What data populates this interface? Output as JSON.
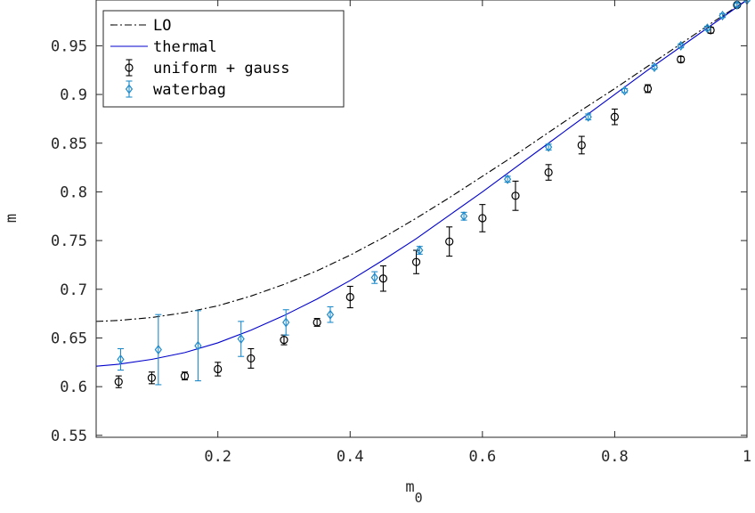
{
  "chart_data": {
    "type": "scatter",
    "title": "",
    "xlabel": "m",
    "xlabel_subscript": "0",
    "ylabel": "m",
    "xlim": [
      0.016,
      1.0
    ],
    "ylim": [
      0.548,
      0.997
    ],
    "xticks": [
      0.2,
      0.4,
      0.6,
      0.8,
      1
    ],
    "xtick_labels": [
      "0.2",
      "0.4",
      "0.6",
      "0.8",
      "1"
    ],
    "yticks": [
      0.55,
      0.6,
      0.65,
      0.7,
      0.75,
      0.8,
      0.85,
      0.9,
      0.95
    ],
    "ytick_labels": [
      "0.55",
      "0.6",
      "0.65",
      "0.7",
      "0.75",
      "0.8",
      "0.85",
      "0.9",
      "0.95"
    ],
    "grid": false,
    "legend_position": "top-left",
    "series": [
      {
        "name": "LO",
        "kind": "line",
        "style": "dash-dot",
        "color": "#000000",
        "x": [
          0.016,
          0.05,
          0.1,
          0.15,
          0.2,
          0.25,
          0.3,
          0.35,
          0.4,
          0.45,
          0.5,
          0.55,
          0.6,
          0.65,
          0.7,
          0.75,
          0.8,
          0.85,
          0.9,
          0.95,
          1.0
        ],
        "y": [
          0.667,
          0.668,
          0.671,
          0.676,
          0.683,
          0.693,
          0.705,
          0.719,
          0.735,
          0.753,
          0.773,
          0.794,
          0.816,
          0.838,
          0.861,
          0.884,
          0.906,
          0.929,
          0.952,
          0.975,
          0.997
        ]
      },
      {
        "name": "thermal",
        "kind": "line",
        "style": "solid",
        "color": "#0000cc",
        "x": [
          0.016,
          0.05,
          0.1,
          0.15,
          0.2,
          0.25,
          0.3,
          0.35,
          0.4,
          0.45,
          0.5,
          0.55,
          0.6,
          0.65,
          0.7,
          0.75,
          0.8,
          0.85,
          0.9,
          0.95,
          1.0
        ],
        "y": [
          0.621,
          0.623,
          0.628,
          0.635,
          0.645,
          0.658,
          0.673,
          0.69,
          0.709,
          0.73,
          0.752,
          0.776,
          0.8,
          0.825,
          0.85,
          0.875,
          0.9,
          0.925,
          0.949,
          0.973,
          0.997
        ]
      },
      {
        "name": "uniform + gauss",
        "kind": "errorbar",
        "marker": "circle",
        "color": "#000000",
        "x": [
          0.05,
          0.1,
          0.15,
          0.2,
          0.25,
          0.3,
          0.35,
          0.4,
          0.45,
          0.5,
          0.55,
          0.6,
          0.65,
          0.7,
          0.75,
          0.8,
          0.85,
          0.9,
          0.945,
          0.985
        ],
        "y": [
          0.605,
          0.609,
          0.611,
          0.618,
          0.629,
          0.648,
          0.666,
          0.692,
          0.711,
          0.728,
          0.749,
          0.773,
          0.796,
          0.82,
          0.848,
          0.877,
          0.906,
          0.936,
          0.966,
          0.992
        ],
        "err": [
          0.006,
          0.006,
          0.004,
          0.007,
          0.01,
          0.005,
          0.004,
          0.011,
          0.013,
          0.012,
          0.015,
          0.014,
          0.015,
          0.008,
          0.009,
          0.008,
          0.004,
          0.003,
          0.003,
          0.002
        ]
      },
      {
        "name": "waterbag",
        "kind": "errorbar",
        "marker": "diamond",
        "color": "#1f8bcb",
        "x": [
          0.053,
          0.11,
          0.17,
          0.235,
          0.303,
          0.37,
          0.437,
          0.505,
          0.572,
          0.638,
          0.7,
          0.76,
          0.815,
          0.86,
          0.9,
          0.94,
          0.963,
          0.985,
          1.0
        ],
        "y": [
          0.628,
          0.638,
          0.642,
          0.649,
          0.666,
          0.674,
          0.712,
          0.74,
          0.775,
          0.813,
          0.846,
          0.877,
          0.904,
          0.928,
          0.95,
          0.968,
          0.981,
          0.992,
          0.997
        ],
        "err": [
          0.011,
          0.036,
          0.036,
          0.018,
          0.013,
          0.008,
          0.006,
          0.004,
          0.004,
          0.003,
          0.003,
          0.003,
          0.002,
          0.002,
          0.002,
          0.002,
          0.002,
          0.002,
          0.001
        ]
      }
    ]
  }
}
